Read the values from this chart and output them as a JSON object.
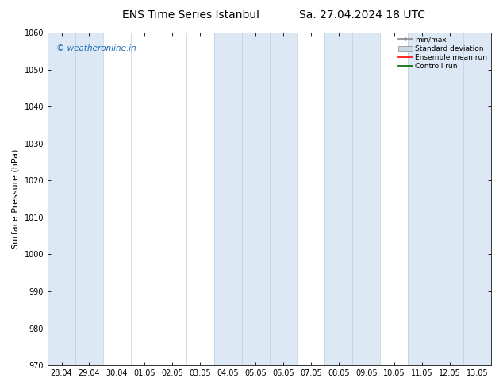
{
  "title_left": "ENS Time Series Istanbul",
  "title_right": "Sa. 27.04.2024 18 UTC",
  "ylabel": "Surface Pressure (hPa)",
  "ylim": [
    970,
    1060
  ],
  "yticks": [
    970,
    980,
    990,
    1000,
    1010,
    1020,
    1030,
    1040,
    1050,
    1060
  ],
  "x_labels": [
    "28.04",
    "29.04",
    "30.04",
    "01.05",
    "02.05",
    "03.05",
    "04.05",
    "05.05",
    "06.05",
    "07.05",
    "08.05",
    "09.05",
    "10.05",
    "11.05",
    "12.05",
    "13.05"
  ],
  "shade_color": "#dce9f5",
  "shaded_index_ranges": [
    [
      0,
      1
    ],
    [
      6,
      8
    ],
    [
      10,
      11
    ],
    [
      13,
      15
    ]
  ],
  "vline_color": "#b0c8df",
  "background_color": "#ffffff",
  "watermark_text": "© weatheronline.in",
  "watermark_color": "#1a6bb5",
  "legend_items": [
    {
      "label": "min/max",
      "color": "#999999",
      "style": "errorbar"
    },
    {
      "label": "Standard deviation",
      "color": "#c8d8e8",
      "style": "box"
    },
    {
      "label": "Ensemble mean run",
      "color": "#ff0000",
      "style": "line"
    },
    {
      "label": "Controll run",
      "color": "#006400",
      "style": "line"
    }
  ],
  "tick_fontsize": 7,
  "label_fontsize": 8,
  "title_fontsize": 10
}
